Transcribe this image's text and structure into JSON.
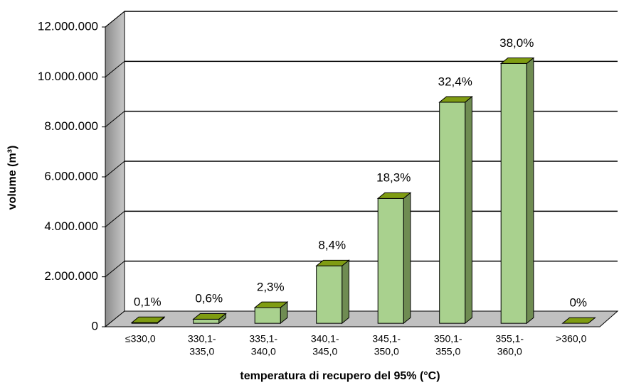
{
  "chart_data": {
    "type": "bar3d",
    "x_label": "temperatura di recupero del 95% (°C)",
    "y_label": "volume (m³)",
    "categories": [
      [
        "≤330,0"
      ],
      [
        "330,1-",
        "335,0"
      ],
      [
        "335,1-",
        "340,0"
      ],
      [
        "340,1-",
        "345,0"
      ],
      [
        "345,1-",
        "350,0"
      ],
      [
        "350,1-",
        "355,0"
      ],
      [
        "355,1-",
        "360,0"
      ],
      [
        ">360,0"
      ]
    ],
    "values": [
      27000,
      165000,
      630000,
      2300000,
      5000000,
      8850000,
      10400000,
      0
    ],
    "share_labels": [
      "0,1%",
      "0,6%",
      "2,3%",
      "8,4%",
      "18,3%",
      "32,4%",
      "38,0%",
      "0%"
    ],
    "color": "#a9d18e",
    "ylim": [
      0,
      12000000
    ],
    "yticks": [
      0,
      {
        "value": 2000000,
        "label": "2.000.000"
      },
      {
        "value": 4000000,
        "label": "4.000.000"
      },
      {
        "value": 6000000,
        "label": "6.000.000"
      },
      {
        "value": 8000000,
        "label": "8.000.000"
      },
      {
        "value": 10000000,
        "label": "10.000.000"
      },
      {
        "value": 12000000,
        "label": "12.000.000"
      }
    ],
    "grid": true
  }
}
